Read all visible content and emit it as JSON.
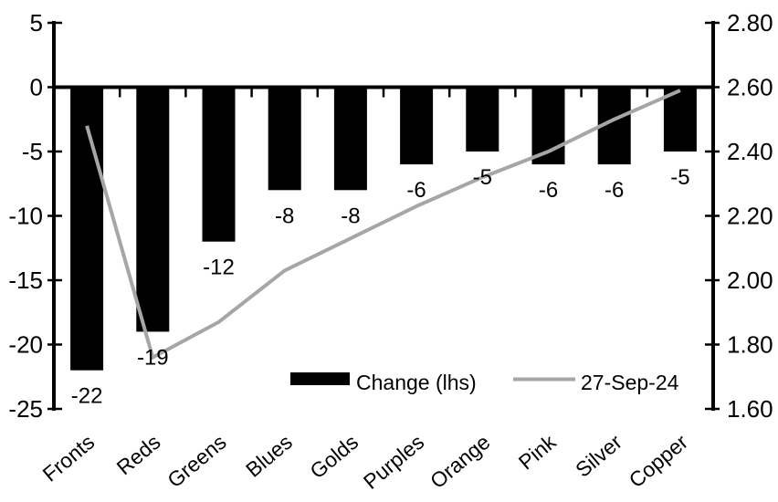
{
  "chart_data": {
    "type": "bar",
    "subtype": "bar-line-combo-dual-axis",
    "title": "",
    "categories": [
      "Fronts",
      "Reds",
      "Greens",
      "Blues",
      "Golds",
      "Purples",
      "Orange",
      "Pink",
      "Silver",
      "Copper"
    ],
    "series": [
      {
        "name": "Change (lhs)",
        "type": "bar",
        "axis": "left",
        "color": "#000000",
        "values": [
          -22,
          -19,
          -12,
          -8,
          -8,
          -6,
          -5,
          -6,
          -6,
          -5
        ],
        "data_labels": [
          "-22",
          "-19",
          "-12",
          "-8",
          "-8",
          "-6",
          "-5",
          "-6",
          "-6",
          "-5"
        ]
      },
      {
        "name": "27-Sep-24",
        "type": "line",
        "axis": "right",
        "color": "#a6a6a6",
        "values": [
          2.48,
          1.76,
          1.87,
          2.03,
          2.13,
          2.23,
          2.32,
          2.4,
          2.5,
          2.59
        ]
      }
    ],
    "left_axis": {
      "min": -25,
      "max": 5,
      "tick_values": [
        5,
        0,
        -5,
        -10,
        -15,
        -20,
        -25
      ],
      "tick_labels": [
        "5",
        "0",
        "-5",
        "-10",
        "-15",
        "-20",
        "-25"
      ]
    },
    "right_axis": {
      "min": 1.6,
      "max": 2.8,
      "tick_values": [
        2.8,
        2.6,
        2.4,
        2.2,
        2.0,
        1.8,
        1.6
      ],
      "tick_labels": [
        "2.80",
        "2.60",
        "2.40",
        "2.20",
        "2.00",
        "1.80",
        "1.60"
      ]
    },
    "legend": {
      "position": "inside-bottom-center",
      "entries": [
        {
          "label": "Change (lhs)",
          "swatch": "filled-bar",
          "color": "#000000"
        },
        {
          "label": "27-Sep-24",
          "swatch": "line",
          "color": "#a6a6a6"
        }
      ]
    },
    "grid": false,
    "category_label_rotation_deg": -40,
    "colors": {
      "bar": "#000000",
      "line": "#a6a6a6",
      "axis": "#000000",
      "text": "#000000",
      "background": "#ffffff"
    }
  }
}
